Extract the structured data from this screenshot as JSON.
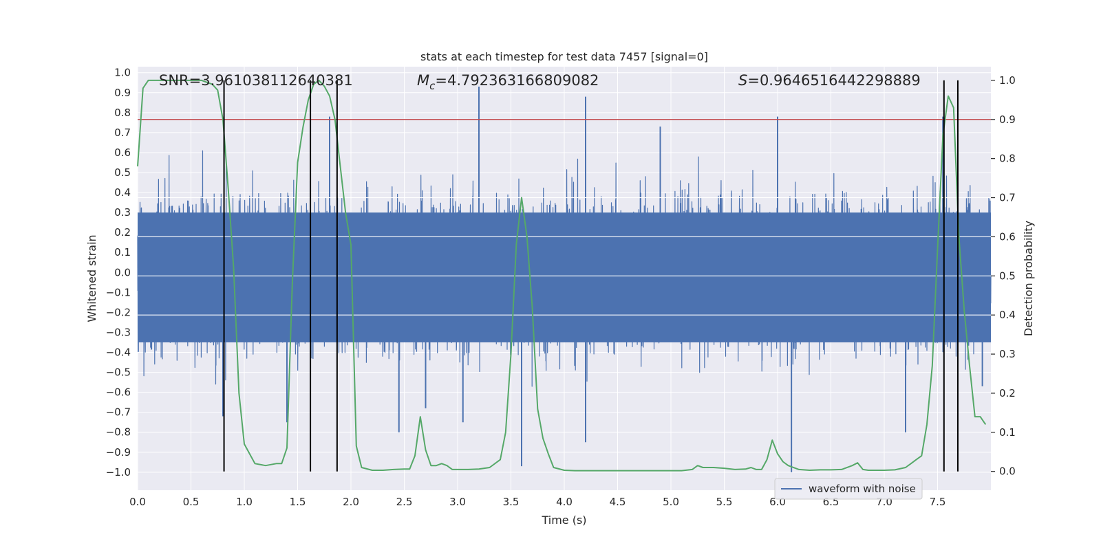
{
  "chart_data": {
    "type": "line",
    "title": "stats at each timestep for test data 7457 [signal=0]",
    "xlabel": "Time (s)",
    "ylabel_left": "Whitened strain",
    "ylabel_right": "Detection probability",
    "xlim": [
      0.0,
      8.0
    ],
    "ylim_left": [
      -1.09,
      1.03
    ],
    "ylim_right": [
      -0.048,
      1.035
    ],
    "x_ticks": [
      0.0,
      0.5,
      1.0,
      1.5,
      2.0,
      2.5,
      3.0,
      3.5,
      4.0,
      4.5,
      5.0,
      5.5,
      6.0,
      6.5,
      7.0,
      7.5
    ],
    "x_tick_labels": [
      "0.0",
      "0.5",
      "1.0",
      "1.5",
      "2.0",
      "2.5",
      "3.0",
      "3.5",
      "4.0",
      "4.5",
      "5.0",
      "5.5",
      "6.0",
      "6.5",
      "7.0",
      "7.5"
    ],
    "y_left_ticks": [
      1.0,
      0.9,
      0.8,
      0.7,
      0.6,
      0.5,
      0.4,
      0.3,
      0.2,
      0.1,
      0.0,
      -0.1,
      -0.2,
      -0.3,
      -0.4,
      -0.5,
      -0.6,
      -0.7,
      -0.8,
      -0.9,
      -1.0
    ],
    "y_left_tick_labels": [
      "1.0",
      "0.9",
      "0.8",
      "0.7",
      "0.6",
      "0.5",
      "0.4",
      "0.3",
      "0.2",
      "0.1",
      "0.0",
      "−0.1",
      "−0.2",
      "−0.3",
      "−0.4",
      "−0.5",
      "−0.6",
      "−0.7",
      "−0.8",
      "−0.9",
      "−1.0"
    ],
    "y_right_ticks": [
      1.0,
      0.9,
      0.8,
      0.7,
      0.6,
      0.5,
      0.4,
      0.3,
      0.2,
      0.1,
      0.0
    ],
    "y_right_tick_labels": [
      "1.0",
      "0.9",
      "0.8",
      "0.7",
      "0.6",
      "0.5",
      "0.4",
      "0.3",
      "0.2",
      "0.1",
      "0.0"
    ],
    "annotations": {
      "snr": "SNR=3.961038112640381",
      "mc_symbol": "M",
      "mc_sub": "c",
      "mc_value": "=4.792363166809082",
      "s_symbol": "S",
      "s_value": "=0.9646516442298889"
    },
    "threshold": {
      "value": 0.9,
      "axis": "right",
      "color": "#c44e52"
    },
    "vertical_lines": [
      0.81,
      1.62,
      1.87,
      7.56,
      7.69
    ],
    "series": [
      {
        "name": "waveform with noise",
        "axis": "left",
        "color": "#4c72b0",
        "kind": "dense-noise",
        "typical_envelope": [
          -0.45,
          0.55
        ],
        "peak_spikes": [
          {
            "x": 0.8,
            "y": -0.72
          },
          {
            "x": 1.4,
            "y": -0.75
          },
          {
            "x": 1.8,
            "y": 0.78
          },
          {
            "x": 2.45,
            "y": -0.8
          },
          {
            "x": 2.7,
            "y": -0.68
          },
          {
            "x": 3.05,
            "y": -0.75
          },
          {
            "x": 3.2,
            "y": 0.93
          },
          {
            "x": 3.6,
            "y": -0.97
          },
          {
            "x": 4.2,
            "y": 0.88
          },
          {
            "x": 4.2,
            "y": -0.85
          },
          {
            "x": 4.9,
            "y": 0.73
          },
          {
            "x": 6.0,
            "y": 0.78
          },
          {
            "x": 6.13,
            "y": -1.0
          },
          {
            "x": 7.2,
            "y": -0.8
          },
          {
            "x": 7.55,
            "y": 0.78
          },
          {
            "x": 7.92,
            "y": -0.57
          }
        ]
      },
      {
        "name": "detection probability",
        "axis": "right",
        "color": "#55a868",
        "x": [
          0.0,
          0.05,
          0.1,
          0.2,
          0.3,
          0.4,
          0.5,
          0.6,
          0.65,
          0.7,
          0.75,
          0.8,
          0.85,
          0.9,
          0.95,
          1.0,
          1.1,
          1.2,
          1.3,
          1.35,
          1.4,
          1.45,
          1.5,
          1.55,
          1.6,
          1.65,
          1.7,
          1.75,
          1.8,
          1.85,
          1.9,
          1.95,
          2.0,
          2.05,
          2.1,
          2.2,
          2.3,
          2.4,
          2.5,
          2.55,
          2.6,
          2.65,
          2.7,
          2.75,
          2.8,
          2.85,
          2.9,
          2.95,
          3.0,
          3.05,
          3.1,
          3.2,
          3.3,
          3.4,
          3.45,
          3.5,
          3.55,
          3.6,
          3.65,
          3.7,
          3.75,
          3.8,
          3.85,
          3.9,
          4.0,
          4.1,
          4.2,
          4.5,
          5.0,
          5.1,
          5.2,
          5.25,
          5.3,
          5.4,
          5.5,
          5.6,
          5.7,
          5.75,
          5.8,
          5.85,
          5.9,
          5.95,
          6.0,
          6.05,
          6.1,
          6.2,
          6.3,
          6.4,
          6.5,
          6.6,
          6.7,
          6.75,
          6.8,
          6.85,
          6.9,
          7.0,
          7.1,
          7.2,
          7.25,
          7.3,
          7.35,
          7.4,
          7.45,
          7.5,
          7.55,
          7.6,
          7.65,
          7.7,
          7.75,
          7.8,
          7.85,
          7.9,
          7.95
        ],
        "y": [
          0.78,
          0.98,
          1.0,
          1.0,
          1.0,
          1.0,
          1.0,
          1.0,
          0.995,
          0.99,
          0.975,
          0.9,
          0.72,
          0.52,
          0.2,
          0.07,
          0.02,
          0.015,
          0.02,
          0.02,
          0.06,
          0.48,
          0.79,
          0.88,
          0.95,
          0.99,
          1.0,
          0.985,
          0.96,
          0.9,
          0.78,
          0.66,
          0.58,
          0.065,
          0.01,
          0.003,
          0.003,
          0.005,
          0.006,
          0.006,
          0.04,
          0.14,
          0.055,
          0.015,
          0.015,
          0.02,
          0.015,
          0.005,
          0.005,
          0.005,
          0.005,
          0.006,
          0.01,
          0.03,
          0.1,
          0.3,
          0.58,
          0.7,
          0.6,
          0.42,
          0.16,
          0.085,
          0.045,
          0.01,
          0.003,
          0.002,
          0.002,
          0.002,
          0.002,
          0.002,
          0.005,
          0.015,
          0.01,
          0.01,
          0.008,
          0.005,
          0.006,
          0.01,
          0.005,
          0.005,
          0.03,
          0.08,
          0.045,
          0.025,
          0.015,
          0.005,
          0.003,
          0.004,
          0.004,
          0.005,
          0.015,
          0.022,
          0.005,
          0.003,
          0.003,
          0.003,
          0.004,
          0.01,
          0.02,
          0.03,
          0.04,
          0.12,
          0.27,
          0.57,
          0.86,
          0.96,
          0.93,
          0.6,
          0.41,
          0.27,
          0.14,
          0.14,
          0.12
        ]
      }
    ],
    "legend": {
      "label": "waveform with noise",
      "placement": "lower-right"
    }
  }
}
